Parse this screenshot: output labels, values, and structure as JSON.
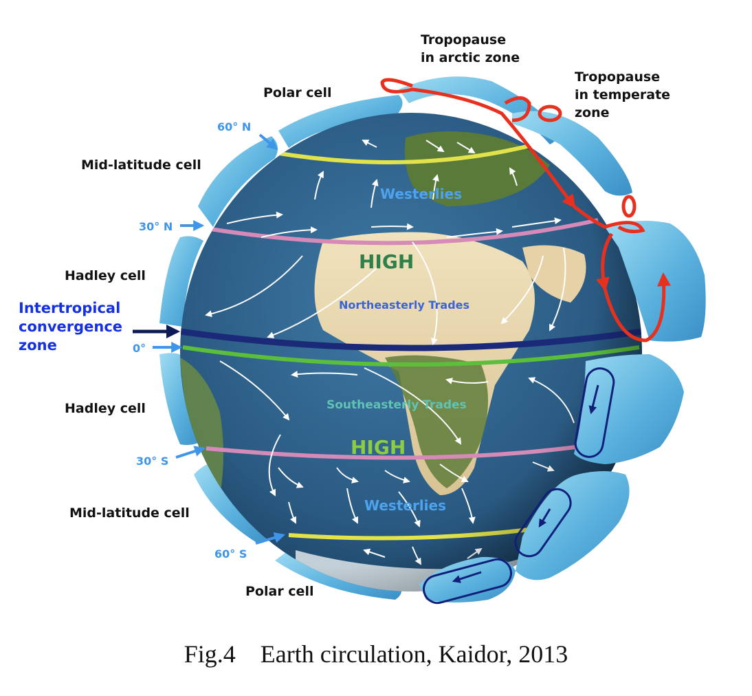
{
  "labels": {
    "polar_cell_top": "Polar cell",
    "mid_latitude_cell_top": "Mid-latitude cell",
    "hadley_cell_top": "Hadley cell",
    "itcz_line1": "Intertropical",
    "itcz_line2": "convergence",
    "itcz_line3": "zone",
    "hadley_cell_bottom": "Hadley cell",
    "mid_latitude_cell_bottom": "Mid-latitude cell",
    "polar_cell_bottom": "Polar cell",
    "tropopause_arctic_line1": "Tropopause",
    "tropopause_arctic_line2": "in arctic zone",
    "tropopause_temperate_line1": "Tropopause",
    "tropopause_temperate_line2": "in temperate",
    "tropopause_temperate_line3": "zone"
  },
  "latitudes": {
    "n60": "60° N",
    "n30": "30° N",
    "eq": "0°",
    "s30": "30° S",
    "s60": "60° S"
  },
  "winds": {
    "westerlies_north": "Westerlies",
    "high_north": "HIGH",
    "northeasterly_trades": "Northeasterly Trades",
    "southeasterly_trades": "Southeasterly Trades",
    "high_south": "HIGH",
    "westerlies_south": "Westerlies"
  },
  "colors": {
    "band_60": "#e2e34a",
    "band_30": "#d58ab8",
    "band_itcz": "#1a2a78",
    "band_equator": "#5cbf3c",
    "ocean": "#2d5f86",
    "land_desert": "#e8d8b0",
    "land_green": "#5a7a3a",
    "cell_blue": "#5bb2de",
    "tropopause_red": "#e8301e",
    "ice": "#dfe6ea"
  },
  "caption": "Fig.4    Earth circulation, Kaidor, 2013"
}
